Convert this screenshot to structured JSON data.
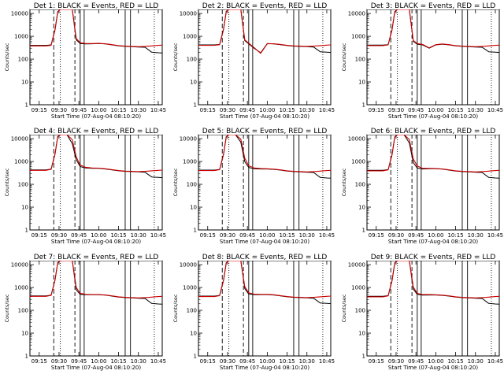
{
  "figure": {
    "ylabel": "Counts/sec",
    "xlabel": "Start Time (07-Aug-04 08:10:20)",
    "xlabel_short": "Start Time (07-Aug-04 08:10:20)",
    "time_ticks": [
      "09:15",
      "09:30",
      "09:45",
      "10:00",
      "10:15",
      "10:30",
      "10:45"
    ],
    "y_ticks": [
      "1",
      "10",
      "100",
      "1000",
      "10000"
    ],
    "colors": {
      "events": "#000000",
      "lld": "#cc0000"
    }
  },
  "chart_data": [
    {
      "type": "line",
      "title": "Det 1: BLACK = Events, RED = LLD",
      "yscale": "log",
      "ylim": [
        1,
        15000
      ],
      "xlim": [
        "09:08",
        "10:48"
      ],
      "x": [
        "09:08",
        "09:20",
        "09:24",
        "09:27",
        "09:29",
        "09:31",
        "09:33",
        "09:36",
        "09:40",
        "09:43",
        "09:46",
        "09:50",
        "09:55",
        "10:00",
        "10:05",
        "10:10",
        "10:15",
        "10:20",
        "10:25",
        "10:30",
        "10:35",
        "10:40",
        "10:45",
        "10:48"
      ],
      "series": [
        {
          "name": "Events",
          "color": "#000000",
          "values": [
            400,
            400,
            420,
            2000,
            12000,
            15000,
            15000,
            15000,
            15000,
            700,
            480,
            460,
            470,
            480,
            460,
            420,
            380,
            360,
            350,
            340,
            330,
            200,
            190,
            185
          ]
        },
        {
          "name": "LLD",
          "color": "#cc0000",
          "values": [
            380,
            380,
            400,
            1900,
            11500,
            15000,
            15000,
            15000,
            15000,
            800,
            520,
            480,
            480,
            490,
            470,
            430,
            390,
            370,
            360,
            350,
            360,
            380,
            400,
            410
          ]
        }
      ]
    },
    {
      "type": "line",
      "title": "Det 2: BLACK = Events, RED = LLD",
      "yscale": "log",
      "ylim": [
        1,
        15000
      ],
      "xlim": [
        "09:08",
        "10:48"
      ],
      "x": [
        "09:08",
        "09:20",
        "09:24",
        "09:27",
        "09:29",
        "09:31",
        "09:33",
        "09:36",
        "09:40",
        "09:43",
        "09:46",
        "09:50",
        "09:55",
        "10:00",
        "10:05",
        "10:10",
        "10:15",
        "10:20",
        "10:25",
        "10:30",
        "10:35",
        "10:40",
        "10:45",
        "10:48"
      ],
      "series": [
        {
          "name": "Events",
          "color": "#000000",
          "values": [
            420,
            420,
            440,
            2100,
            12500,
            15000,
            15000,
            15000,
            15000,
            650,
            470,
            300,
            190,
            480,
            460,
            430,
            390,
            370,
            360,
            350,
            340,
            210,
            200,
            195
          ]
        },
        {
          "name": "LLD",
          "color": "#cc0000",
          "values": [
            400,
            400,
            430,
            2000,
            12000,
            15000,
            15000,
            15000,
            15000,
            700,
            500,
            320,
            180,
            470,
            470,
            440,
            400,
            380,
            370,
            360,
            370,
            390,
            410,
            420
          ]
        }
      ]
    },
    {
      "type": "line",
      "title": "Det 3: BLACK = Events, RED = LLD",
      "yscale": "log",
      "ylim": [
        1,
        15000
      ],
      "xlim": [
        "09:08",
        "10:48"
      ],
      "x": [
        "09:08",
        "09:20",
        "09:24",
        "09:27",
        "09:29",
        "09:31",
        "09:33",
        "09:36",
        "09:40",
        "09:43",
        "09:46",
        "09:50",
        "09:55",
        "10:00",
        "10:05",
        "10:10",
        "10:15",
        "10:20",
        "10:25",
        "10:30",
        "10:35",
        "10:40",
        "10:45",
        "10:48"
      ],
      "series": [
        {
          "name": "Events",
          "color": "#000000",
          "values": [
            410,
            410,
            430,
            2050,
            12200,
            15000,
            15000,
            15000,
            15000,
            600,
            450,
            420,
            300,
            420,
            450,
            420,
            380,
            360,
            350,
            340,
            330,
            210,
            200,
            195
          ]
        },
        {
          "name": "LLD",
          "color": "#cc0000",
          "values": [
            390,
            390,
            420,
            1950,
            11800,
            15000,
            15000,
            15000,
            15000,
            650,
            480,
            440,
            310,
            430,
            460,
            430,
            390,
            370,
            360,
            350,
            360,
            380,
            400,
            410
          ]
        }
      ]
    },
    {
      "type": "line",
      "title": "Det 4: BLACK = Events, RED = LLD",
      "yscale": "log",
      "ylim": [
        1,
        15000
      ],
      "xlim": [
        "09:08",
        "10:48"
      ],
      "x": [
        "09:08",
        "09:20",
        "09:24",
        "09:27",
        "09:29",
        "09:31",
        "09:33",
        "09:36",
        "09:40",
        "09:43",
        "09:46",
        "09:50",
        "09:55",
        "10:00",
        "10:05",
        "10:10",
        "10:15",
        "10:20",
        "10:25",
        "10:30",
        "10:35",
        "10:40",
        "10:45",
        "10:48"
      ],
      "series": [
        {
          "name": "Events",
          "color": "#000000",
          "values": [
            430,
            430,
            460,
            2200,
            12500,
            15000,
            15000,
            15000,
            6000,
            1200,
            600,
            520,
            500,
            500,
            470,
            430,
            390,
            370,
            360,
            350,
            340,
            210,
            200,
            195
          ]
        },
        {
          "name": "LLD",
          "color": "#cc0000",
          "values": [
            410,
            410,
            450,
            2100,
            12000,
            15000,
            15000,
            15000,
            9000,
            1600,
            700,
            560,
            520,
            510,
            480,
            440,
            400,
            380,
            370,
            360,
            370,
            390,
            410,
            420
          ]
        }
      ]
    },
    {
      "type": "line",
      "title": "Det 5: BLACK = Events, RED = LLD",
      "yscale": "log",
      "ylim": [
        1,
        15000
      ],
      "xlim": [
        "09:08",
        "10:48"
      ],
      "x": [
        "09:08",
        "09:20",
        "09:24",
        "09:27",
        "09:29",
        "09:31",
        "09:33",
        "09:36",
        "09:40",
        "09:43",
        "09:46",
        "09:50",
        "09:55",
        "10:00",
        "10:05",
        "10:10",
        "10:15",
        "10:20",
        "10:25",
        "10:30",
        "10:35",
        "10:40",
        "10:45",
        "10:48"
      ],
      "series": [
        {
          "name": "Events",
          "color": "#000000",
          "values": [
            420,
            420,
            450,
            2150,
            12300,
            15000,
            15000,
            15000,
            7000,
            1000,
            550,
            480,
            470,
            470,
            450,
            420,
            380,
            360,
            350,
            340,
            330,
            200,
            190,
            185
          ]
        },
        {
          "name": "LLD",
          "color": "#cc0000",
          "values": [
            400,
            400,
            440,
            2050,
            11900,
            15000,
            15000,
            15000,
            9500,
            1400,
            650,
            520,
            490,
            480,
            460,
            430,
            390,
            370,
            360,
            350,
            360,
            380,
            400,
            410
          ]
        }
      ]
    },
    {
      "type": "line",
      "title": "Det 6: BLACK = Events, RED = LLD",
      "yscale": "log",
      "ylim": [
        1,
        15000
      ],
      "xlim": [
        "09:08",
        "10:48"
      ],
      "x": [
        "09:08",
        "09:20",
        "09:24",
        "09:27",
        "09:29",
        "09:31",
        "09:33",
        "09:36",
        "09:40",
        "09:43",
        "09:46",
        "09:50",
        "09:55",
        "10:00",
        "10:05",
        "10:10",
        "10:15",
        "10:20",
        "10:25",
        "10:30",
        "10:35",
        "10:40",
        "10:45",
        "10:48"
      ],
      "series": [
        {
          "name": "Events",
          "color": "#000000",
          "values": [
            410,
            410,
            440,
            2100,
            12100,
            15000,
            15000,
            15000,
            6500,
            900,
            520,
            470,
            480,
            480,
            460,
            420,
            380,
            360,
            350,
            340,
            330,
            200,
            190,
            185
          ]
        },
        {
          "name": "LLD",
          "color": "#cc0000",
          "values": [
            390,
            390,
            430,
            2000,
            11700,
            15000,
            15000,
            15000,
            9200,
            1300,
            640,
            500,
            500,
            490,
            470,
            430,
            390,
            370,
            360,
            350,
            360,
            380,
            400,
            410
          ]
        }
      ]
    },
    {
      "type": "line",
      "title": "Det 7: BLACK = Events, RED = LLD",
      "yscale": "log",
      "ylim": [
        1,
        15000
      ],
      "xlim": [
        "09:08",
        "10:48"
      ],
      "x": [
        "09:08",
        "09:20",
        "09:24",
        "09:27",
        "09:29",
        "09:31",
        "09:33",
        "09:36",
        "09:40",
        "09:43",
        "09:46",
        "09:50",
        "09:55",
        "10:00",
        "10:05",
        "10:10",
        "10:15",
        "10:20",
        "10:25",
        "10:30",
        "10:35",
        "10:40",
        "10:45",
        "10:48"
      ],
      "series": [
        {
          "name": "Events",
          "color": "#000000",
          "values": [
            430,
            430,
            460,
            2200,
            12500,
            15000,
            15000,
            15000,
            15000,
            800,
            500,
            480,
            480,
            480,
            460,
            420,
            380,
            360,
            350,
            340,
            330,
            200,
            190,
            185
          ]
        },
        {
          "name": "LLD",
          "color": "#cc0000",
          "values": [
            410,
            410,
            450,
            2100,
            12000,
            15000,
            15000,
            15000,
            15000,
            1000,
            560,
            500,
            490,
            490,
            470,
            430,
            390,
            370,
            360,
            350,
            360,
            380,
            400,
            410
          ]
        }
      ]
    },
    {
      "type": "line",
      "title": "Det 8: BLACK = Events, RED = LLD",
      "yscale": "log",
      "ylim": [
        1,
        15000
      ],
      "xlim": [
        "09:08",
        "10:48"
      ],
      "x": [
        "09:08",
        "09:20",
        "09:24",
        "09:27",
        "09:29",
        "09:31",
        "09:33",
        "09:36",
        "09:40",
        "09:43",
        "09:46",
        "09:50",
        "09:55",
        "10:00",
        "10:05",
        "10:10",
        "10:15",
        "10:20",
        "10:25",
        "10:30",
        "10:35",
        "10:40",
        "10:45",
        "10:48"
      ],
      "series": [
        {
          "name": "Events",
          "color": "#000000",
          "values": [
            420,
            420,
            450,
            2150,
            12300,
            15000,
            15000,
            15000,
            15000,
            900,
            520,
            490,
            490,
            490,
            470,
            430,
            390,
            370,
            360,
            350,
            340,
            210,
            200,
            195
          ]
        },
        {
          "name": "LLD",
          "color": "#cc0000",
          "values": [
            400,
            400,
            440,
            2050,
            11900,
            15000,
            15000,
            15000,
            15000,
            1100,
            580,
            510,
            500,
            500,
            480,
            440,
            400,
            380,
            370,
            360,
            370,
            390,
            410,
            420
          ]
        }
      ]
    },
    {
      "type": "line",
      "title": "Det 9: BLACK = Events, RED = LLD",
      "yscale": "log",
      "ylim": [
        1,
        15000
      ],
      "xlim": [
        "09:08",
        "10:48"
      ],
      "x": [
        "09:08",
        "09:20",
        "09:24",
        "09:27",
        "09:29",
        "09:31",
        "09:33",
        "09:36",
        "09:40",
        "09:43",
        "09:46",
        "09:50",
        "09:55",
        "10:00",
        "10:05",
        "10:10",
        "10:15",
        "10:20",
        "10:25",
        "10:30",
        "10:35",
        "10:40",
        "10:45",
        "10:48"
      ],
      "series": [
        {
          "name": "Events",
          "color": "#000000",
          "values": [
            410,
            410,
            440,
            2100,
            12100,
            15000,
            15000,
            15000,
            15000,
            850,
            500,
            460,
            470,
            470,
            450,
            420,
            380,
            360,
            350,
            340,
            330,
            200,
            190,
            185
          ]
        },
        {
          "name": "LLD",
          "color": "#cc0000",
          "values": [
            390,
            390,
            430,
            2000,
            11700,
            15000,
            15000,
            15000,
            15000,
            1050,
            560,
            490,
            490,
            480,
            460,
            430,
            390,
            370,
            360,
            350,
            360,
            380,
            400,
            410
          ]
        }
      ]
    }
  ]
}
